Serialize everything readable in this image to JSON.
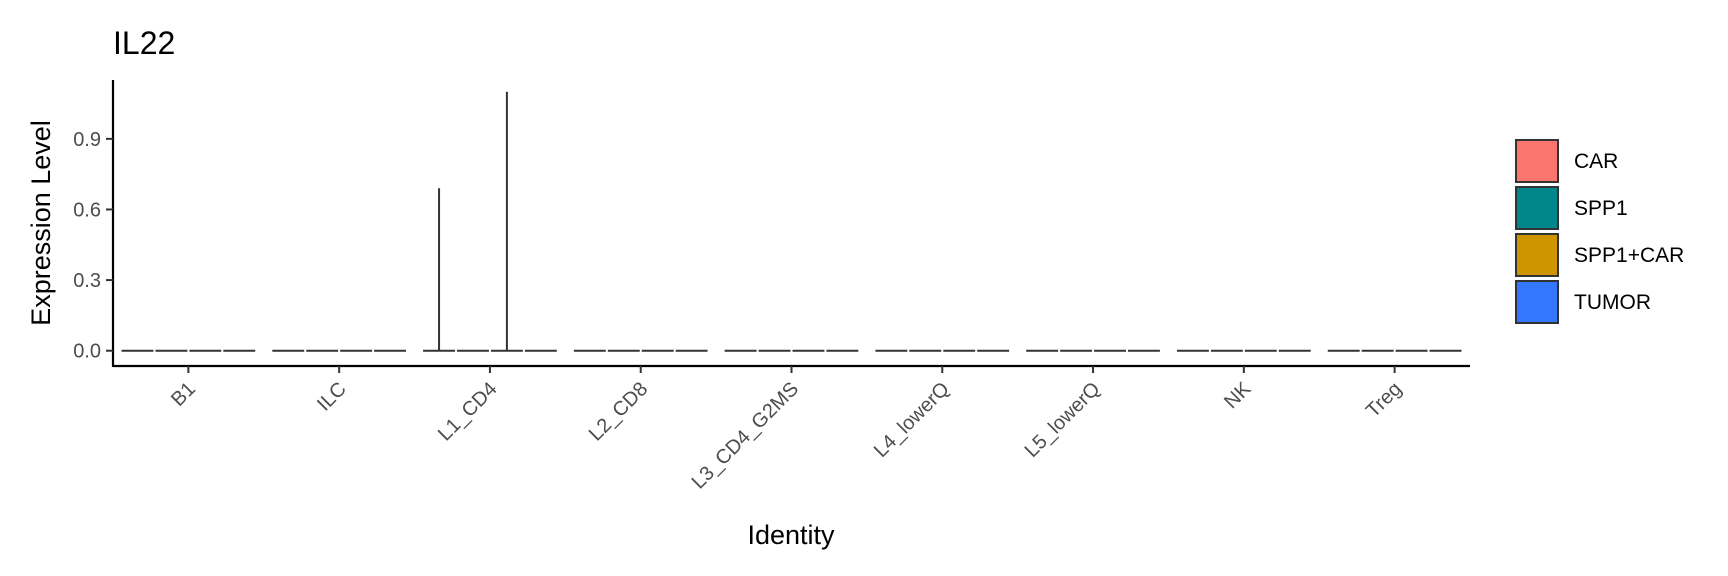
{
  "chart_data": {
    "type": "violin",
    "title": "IL22",
    "xlabel": "Identity",
    "ylabel": "Expression Level",
    "ylim": [
      -0.065,
      1.15
    ],
    "yticks": [
      0.0,
      0.3,
      0.6,
      0.9
    ],
    "ytick_labels": [
      "0.0",
      "0.3",
      "0.6",
      "0.9"
    ],
    "grid": false,
    "legend_position": "right",
    "categories": [
      "B1",
      "ILC",
      "L1_CD4",
      "L2_CD8",
      "L3_CD4_G2MS",
      "L4_lowerQ",
      "L5_lowerQ",
      "NK",
      "Treg"
    ],
    "series": [
      {
        "name": "CAR",
        "color": "#F8766D",
        "max_values": [
          0,
          0,
          0.69,
          0,
          0,
          0,
          0,
          0,
          0
        ]
      },
      {
        "name": "SPP1",
        "color": "#00868B",
        "max_values": [
          0,
          0,
          0,
          0,
          0,
          0,
          0,
          0,
          0
        ]
      },
      {
        "name": "SPP1+CAR",
        "color": "#CD9600",
        "max_values": [
          0,
          0,
          1.1,
          0,
          0,
          0,
          0,
          0,
          0
        ]
      },
      {
        "name": "TUMOR",
        "color": "#3377FF",
        "max_values": [
          0,
          0,
          0,
          0,
          0,
          0,
          0,
          0,
          0
        ]
      }
    ]
  }
}
